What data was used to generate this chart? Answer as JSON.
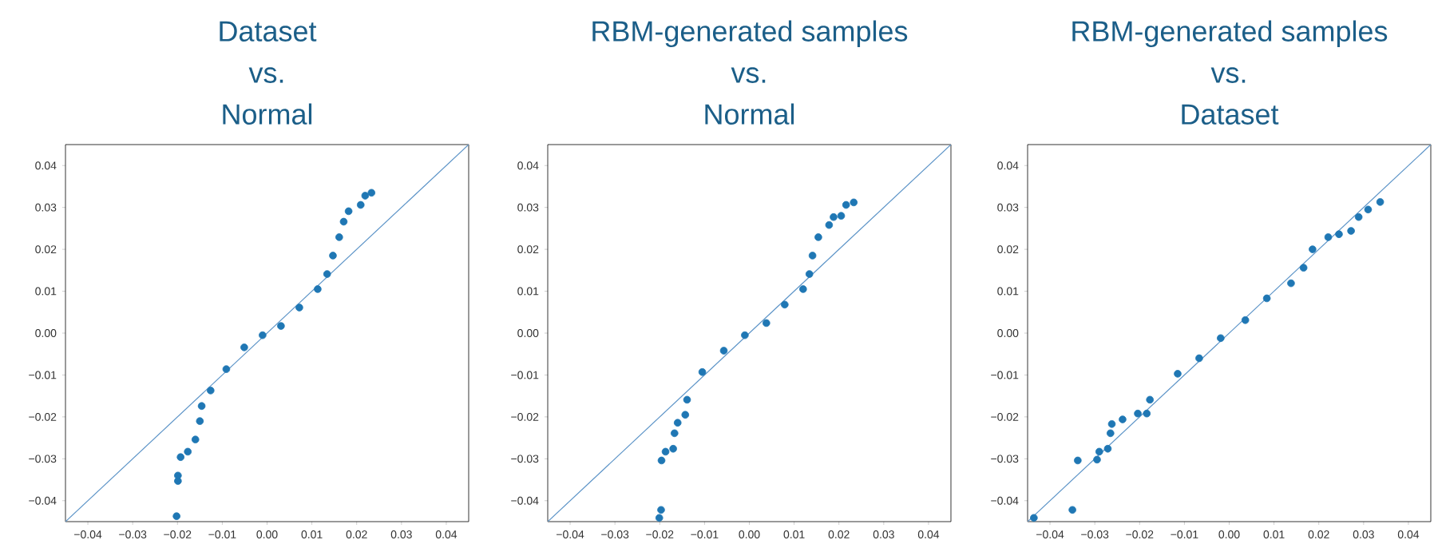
{
  "chart_data": [
    {
      "type": "scatter",
      "title": "Dataset\nvs.\nNormal",
      "marker": "circle",
      "xlim": [
        -0.045,
        0.045
      ],
      "ylim": [
        -0.045,
        0.045
      ],
      "xticks": [
        {
          "value": -0.04,
          "label": "−0.04"
        },
        {
          "value": -0.03,
          "label": "−0.03"
        },
        {
          "value": -0.02,
          "label": "−0.02"
        },
        {
          "value": -0.01,
          "label": "−0.01"
        },
        {
          "value": 0,
          "label": "0.00"
        },
        0.01,
        0.02,
        0.03,
        0.04
      ],
      "yticks": [
        {
          "value": -0.04,
          "label": "−0.04"
        },
        {
          "value": -0.03,
          "label": "−0.03"
        },
        {
          "value": -0.02,
          "label": "−0.02"
        },
        {
          "value": -0.01,
          "label": "−0.01"
        },
        {
          "value": 0,
          "label": "0.00"
        },
        0.01,
        0.02,
        0.03,
        0.04
      ],
      "series": [
        {
          "color": "#1f77b4",
          "x": [
            -0.0202,
            -0.0199,
            -0.0199,
            -0.0193,
            -0.0177,
            -0.016,
            -0.015,
            -0.0146,
            -0.0126,
            -0.0091,
            -0.0051,
            -0.001,
            0.0031,
            0.0072,
            0.0113,
            0.0134,
            0.0147,
            0.0161,
            0.0171,
            0.0182,
            0.0209,
            0.0219,
            0.0233
          ],
          "values": [
            -0.0437,
            -0.0353,
            -0.034,
            -0.0296,
            -0.0283,
            -0.0254,
            -0.021,
            -0.0174,
            -0.0137,
            -0.0086,
            -0.0034,
            -0.0005,
            0.0017,
            0.0061,
            0.0105,
            0.0141,
            0.0185,
            0.0229,
            0.0266,
            0.0291,
            0.0306,
            0.0328,
            0.0335
          ]
        },
        {
          "type": "line",
          "marker": "none",
          "color": "#5b93c7",
          "x": [
            -0.045,
            0.045
          ],
          "values": [
            -0.045,
            0.045
          ]
        }
      ]
    },
    {
      "type": "scatter",
      "title": "RBM-generated samples\nvs.\nNormal",
      "marker": "circle",
      "xlim": [
        -0.045,
        0.045
      ],
      "ylim": [
        -0.045,
        0.045
      ],
      "xticks": [
        {
          "value": -0.04,
          "label": "−0.04"
        },
        {
          "value": -0.03,
          "label": "−0.03"
        },
        {
          "value": -0.02,
          "label": "−0.02"
        },
        {
          "value": -0.01,
          "label": "−0.01"
        },
        {
          "value": 0,
          "label": "0.00"
        },
        0.01,
        0.02,
        0.03,
        0.04
      ],
      "yticks": [
        {
          "value": -0.04,
          "label": "−0.04"
        },
        {
          "value": -0.03,
          "label": "−0.03"
        },
        {
          "value": -0.02,
          "label": "−0.02"
        },
        {
          "value": -0.01,
          "label": "−0.01"
        },
        {
          "value": 0,
          "label": "0.00"
        },
        0.01,
        0.02,
        0.03,
        0.04
      ],
      "series": [
        {
          "color": "#1f77b4",
          "x": [
            -0.0201,
            -0.0197,
            -0.0196,
            -0.0187,
            -0.017,
            -0.0167,
            -0.016,
            -0.0143,
            -0.0139,
            -0.0105,
            -0.0057,
            -0.001,
            0.0038,
            0.0079,
            0.012,
            0.0134,
            0.0141,
            0.0154,
            0.0178,
            0.0188,
            0.0205,
            0.0216,
            0.0233
          ],
          "values": [
            -0.0441,
            -0.0422,
            -0.0304,
            -0.0283,
            -0.0276,
            -0.0239,
            -0.0214,
            -0.0195,
            -0.0159,
            -0.0093,
            -0.0042,
            -0.0005,
            0.0024,
            0.0068,
            0.0105,
            0.0141,
            0.0185,
            0.0229,
            0.0258,
            0.0277,
            0.028,
            0.0306,
            0.0312
          ]
        },
        {
          "type": "line",
          "marker": "none",
          "color": "#5b93c7",
          "x": [
            -0.045,
            0.045
          ],
          "values": [
            -0.045,
            0.045
          ]
        }
      ]
    },
    {
      "type": "scatter",
      "title": "RBM-generated samples\nvs.\nDataset",
      "marker": "circle",
      "xlim": [
        -0.045,
        0.045
      ],
      "ylim": [
        -0.045,
        0.045
      ],
      "xticks": [
        {
          "value": -0.04,
          "label": "−0.04"
        },
        {
          "value": -0.03,
          "label": "−0.03"
        },
        {
          "value": -0.02,
          "label": "−0.02"
        },
        {
          "value": -0.01,
          "label": "−0.01"
        },
        {
          "value": 0,
          "label": "0.00"
        },
        0.01,
        0.02,
        0.03,
        0.04
      ],
      "yticks": [
        {
          "value": -0.04,
          "label": "−0.04"
        },
        {
          "value": -0.03,
          "label": "−0.03"
        },
        {
          "value": -0.02,
          "label": "−0.02"
        },
        {
          "value": -0.01,
          "label": "−0.01"
        },
        {
          "value": 0,
          "label": "0.00"
        },
        0.01,
        0.02,
        0.03,
        0.04
      ],
      "series": [
        {
          "color": "#1f77b4",
          "x": [
            -0.0436,
            -0.035,
            -0.0338,
            -0.0295,
            -0.029,
            -0.0271,
            -0.0265,
            -0.0262,
            -0.0238,
            -0.0204,
            -0.0184,
            -0.0177,
            -0.0115,
            -0.0067,
            -0.0019,
            0.0036,
            0.0084,
            0.0138,
            0.0166,
            0.0186,
            0.0221,
            0.0245,
            0.0272,
            0.0289,
            0.031,
            0.0337
          ],
          "values": [
            -0.0441,
            -0.0422,
            -0.0304,
            -0.0302,
            -0.0283,
            -0.0276,
            -0.0239,
            -0.0217,
            -0.0206,
            -0.0192,
            -0.0192,
            -0.0159,
            -0.0097,
            -0.006,
            -0.0012,
            0.0031,
            0.0083,
            0.0119,
            0.0156,
            0.02,
            0.0229,
            0.0236,
            0.0244,
            0.0277,
            0.0295,
            0.0313
          ]
        },
        {
          "type": "line",
          "marker": "none",
          "color": "#5b93c7",
          "x": [
            -0.045,
            0.045
          ],
          "values": [
            -0.045,
            0.045
          ]
        }
      ]
    }
  ]
}
